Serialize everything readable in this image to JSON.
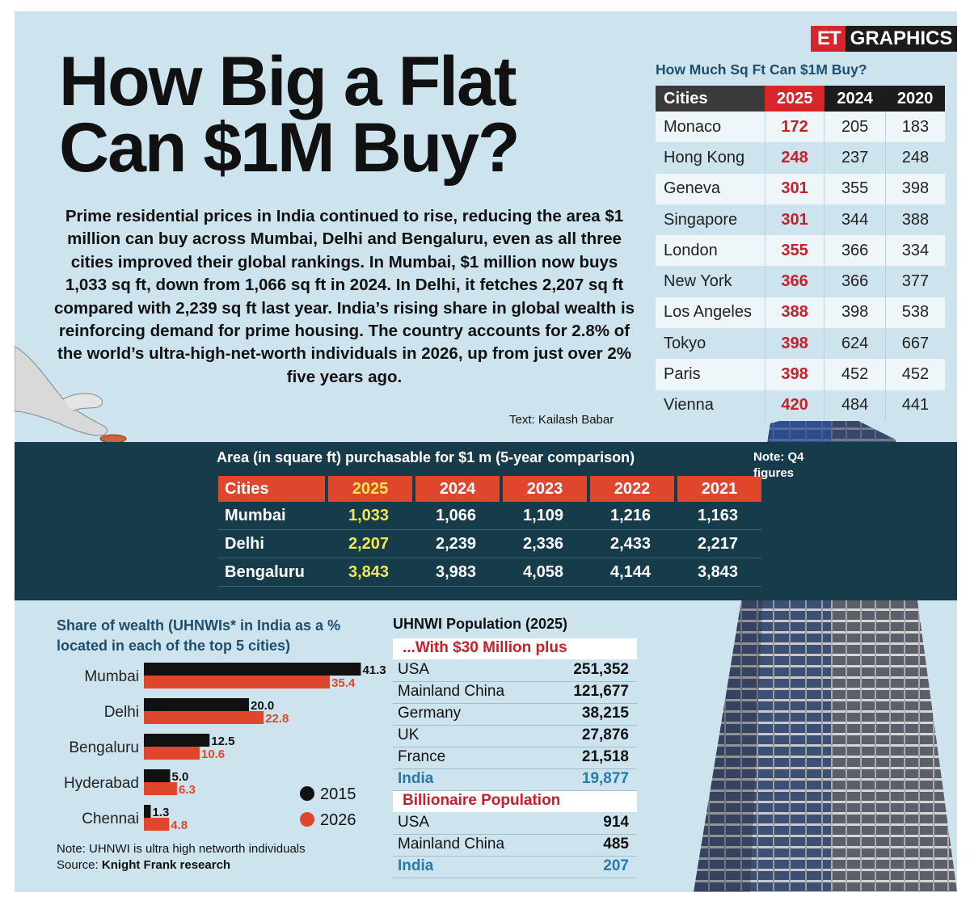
{
  "brand": {
    "et": "ET",
    "graphics": "GRAPHICS"
  },
  "headline": {
    "line1": "How Big a Flat",
    "line2": "Can $1M Buy?"
  },
  "intro": "Prime residential prices in India continued to rise, reducing the area $1 million can buy across Mumbai, Delhi and Bengaluru, even as all three cities improved their global rankings. In Mumbai, $1 million now buys 1,033 sq ft, down from 1,066 sq ft in 2024. In Delhi, it fetches 2,207 sq ft compared with 2,239 sq ft last year. India’s rising share in global wealth is reinforcing demand for prime housing. The country accounts for 2.8% of the world’s ultra-high-net-worth individuals in 2026, up from just over 2% five years ago.",
  "credit": "Text: Kailash Babar",
  "note_q4": "Note: Q4 figures",
  "colors": {
    "red": "#d7262b",
    "navy": "#163c4c",
    "orange": "#e0462c",
    "yellow": "#f4e84a",
    "bg": "#cde4ee",
    "blue_text": "#2a79ad"
  },
  "chart_data": [
    {
      "type": "table",
      "title": "How Much Sq Ft Can $1M Buy?",
      "columns": [
        "Cities",
        "2025",
        "2024",
        "2020"
      ],
      "rows": [
        [
          "Monaco",
          "172",
          "205",
          "183"
        ],
        [
          "Hong Kong",
          "248",
          "237",
          "248"
        ],
        [
          "Geneva",
          "301",
          "355",
          "398"
        ],
        [
          "Singapore",
          "301",
          "344",
          "388"
        ],
        [
          "London",
          "355",
          "366",
          "334"
        ],
        [
          "New York",
          "366",
          "366",
          "377"
        ],
        [
          "Los Angeles",
          "388",
          "398",
          "538"
        ],
        [
          "Tokyo",
          "398",
          "624",
          "667"
        ],
        [
          "Paris",
          "398",
          "452",
          "452"
        ],
        [
          "Vienna",
          "420",
          "484",
          "441"
        ]
      ]
    },
    {
      "type": "table",
      "title": "Area (in square ft) purchasable for $1 m (5-year comparison)",
      "columns": [
        "Cities",
        "2025",
        "2024",
        "2023",
        "2022",
        "2021"
      ],
      "rows": [
        [
          "Mumbai",
          "1,033",
          "1,066",
          "1,109",
          "1,216",
          "1,163"
        ],
        [
          "Delhi",
          "2,207",
          "2,239",
          "2,336",
          "2,433",
          "2,217"
        ],
        [
          "Bengaluru",
          "3,843",
          "3,983",
          "4,058",
          "4,144",
          "3,843"
        ]
      ]
    },
    {
      "type": "bar",
      "orientation": "horizontal",
      "title": "Share of wealth (UHNWIs* in India as a % located in each of the top 5 cities)",
      "categories": [
        "Mumbai",
        "Delhi",
        "Bengaluru",
        "Hyderabad",
        "Chennai"
      ],
      "series": [
        {
          "name": "2015",
          "color": "#111111",
          "values": [
            41.3,
            20.0,
            12.5,
            5.0,
            1.3
          ],
          "labels": [
            "41.3",
            "20.0",
            "12.5",
            "5.0",
            "1.3"
          ]
        },
        {
          "name": "2026",
          "color": "#e0462c",
          "values": [
            35.4,
            22.8,
            10.6,
            6.3,
            4.8
          ],
          "labels": [
            "35.4",
            "22.8",
            "10.6",
            "6.3",
            "4.8"
          ]
        }
      ],
      "legend": "bottom-right",
      "note": "Note: UHNWI is ultra high networth individuals",
      "source_label": "Source:",
      "source": "Knight Frank research"
    },
    {
      "type": "table",
      "title": "UHNWI Population (2025)",
      "sections": [
        {
          "heading": "...With $30 Million plus",
          "rows": [
            {
              "name": "USA",
              "value": "251,352"
            },
            {
              "name": "Mainland China",
              "value": "121,677"
            },
            {
              "name": "Germany",
              "value": "38,215"
            },
            {
              "name": "UK",
              "value": "27,876"
            },
            {
              "name": "France",
              "value": "21,518"
            },
            {
              "name": "India",
              "value": "19,877",
              "highlight": true
            }
          ]
        },
        {
          "heading": "Billionaire Population",
          "rows": [
            {
              "name": "USA",
              "value": "914"
            },
            {
              "name": "Mainland China",
              "value": "485"
            },
            {
              "name": "India",
              "value": "207",
              "highlight": true
            }
          ]
        }
      ]
    }
  ]
}
